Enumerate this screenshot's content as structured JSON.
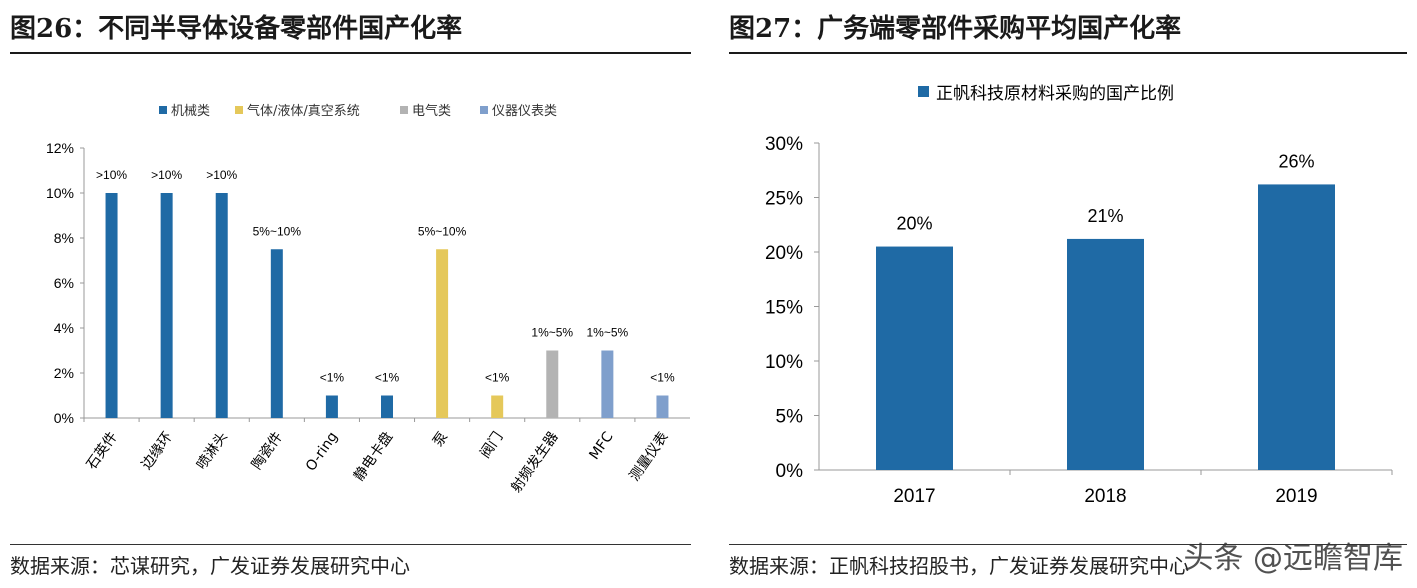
{
  "figures": [
    {
      "title": "图26：不同半导体设备零部件国产化率",
      "source": "数据来源：芯谋研究，广发证券发展研究中心"
    },
    {
      "title": "图27：广务端零部件采购平均国产化率",
      "source": "数据来源：正帆科技招股书，广发证券发展研究中心"
    }
  ],
  "watermark": "头条 @远瞻智库",
  "colors": {
    "blue": "#1F6AA5",
    "yellow": "#E5C85A",
    "gray": "#B3B3B3",
    "lightblue": "#7F9FCC",
    "axis": "#999999"
  },
  "chart_data": [
    {
      "type": "bar",
      "title": "",
      "xlabel": "",
      "ylabel": "",
      "ylim": [
        0,
        12
      ],
      "yticks": [
        "0%",
        "2%",
        "4%",
        "6%",
        "8%",
        "10%",
        "12%"
      ],
      "legend_position": "top",
      "legend": [
        {
          "name": "机械类",
          "color": "#1F6AA5"
        },
        {
          "name": "气体/液体/真空系统",
          "color": "#E5C85A"
        },
        {
          "name": "电气类",
          "color": "#B3B3B3"
        },
        {
          "name": "仪器仪表类",
          "color": "#7F9FCC"
        }
      ],
      "categories": [
        "石英件",
        "边缘环",
        "喷淋头",
        "陶瓷件",
        "O-ring",
        "静电卡盘",
        "泵",
        "阀门",
        "射频发生器",
        "MFC",
        "测量仪表"
      ],
      "values": [
        10,
        10,
        10,
        7.5,
        1,
        1,
        7.5,
        1,
        3,
        3,
        1
      ],
      "groups": [
        "机械类",
        "机械类",
        "机械类",
        "机械类",
        "机械类",
        "机械类",
        "气体/液体/真空系统",
        "气体/液体/真空系统",
        "电气类",
        "仪器仪表类",
        "仪器仪表类"
      ],
      "data_labels": [
        ">10%",
        ">10%",
        ">10%",
        "5%~10%",
        "<1%",
        "<1%",
        "5%~10%",
        "<1%",
        "1%~5%",
        "1%~5%",
        "<1%"
      ]
    },
    {
      "type": "bar",
      "title": "",
      "xlabel": "",
      "ylabel": "",
      "ylim": [
        0,
        30
      ],
      "yticks": [
        "0%",
        "5%",
        "10%",
        "15%",
        "20%",
        "25%",
        "30%"
      ],
      "legend_position": "top",
      "series": [
        {
          "name": "正帆科技原材料采购的国产比例",
          "color": "#1F6AA5",
          "values": [
            20.5,
            21.2,
            26.2
          ]
        }
      ],
      "categories": [
        "2017",
        "2018",
        "2019"
      ],
      "data_labels": [
        "20%",
        "21%",
        "26%"
      ]
    }
  ]
}
